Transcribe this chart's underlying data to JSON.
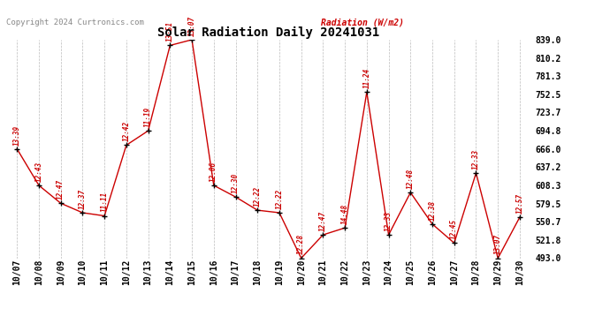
{
  "title": "Solar Radiation Daily 20241031",
  "copyright": "Copyright 2024 Curtronics.com",
  "right_label": "Radiation (W/m2)",
  "point_data": [
    [
      "10/07",
      666.0,
      "13:39"
    ],
    [
      "10/08",
      608.3,
      "12:43"
    ],
    [
      "10/09",
      580.0,
      "12:47"
    ],
    [
      "10/10",
      565.0,
      "12:37"
    ],
    [
      "10/11",
      560.0,
      "11:11"
    ],
    [
      "10/12",
      672.0,
      "12:42"
    ],
    [
      "10/13",
      694.8,
      "11:19"
    ],
    [
      "10/14",
      830.0,
      "13:51"
    ],
    [
      "10/15",
      839.0,
      "13:07"
    ],
    [
      "10/16",
      608.3,
      "12:06"
    ],
    [
      "10/17",
      590.0,
      "12:30"
    ],
    [
      "10/18",
      569.0,
      "12:22"
    ],
    [
      "10/19",
      565.0,
      "12:22"
    ],
    [
      "10/20",
      493.0,
      "12:28"
    ],
    [
      "10/21",
      530.0,
      "12:47"
    ],
    [
      "10/22",
      541.0,
      "14:48"
    ],
    [
      "10/23",
      756.0,
      "11:24"
    ],
    [
      "10/24",
      530.0,
      "12:33"
    ],
    [
      "10/25",
      597.0,
      "12:48"
    ],
    [
      "10/26",
      547.0,
      "12:38"
    ],
    [
      "10/27",
      517.0,
      "12:45"
    ],
    [
      "10/28",
      628.0,
      "12:33"
    ],
    [
      "10/29",
      493.0,
      "13:07"
    ],
    [
      "10/30",
      558.0,
      "12:57"
    ]
  ],
  "ylim_min": 493.0,
  "ylim_max": 839.0,
  "yticks": [
    493.0,
    521.8,
    550.7,
    579.5,
    608.3,
    637.2,
    666.0,
    694.8,
    723.7,
    752.5,
    781.3,
    810.2,
    839.0
  ],
  "line_color": "#cc0000",
  "marker_color": "#000000",
  "bg_color": "#ffffff",
  "grid_color": "#bbbbbb",
  "title_color": "#000000",
  "label_color": "#cc0000",
  "copyright_color": "#888888"
}
